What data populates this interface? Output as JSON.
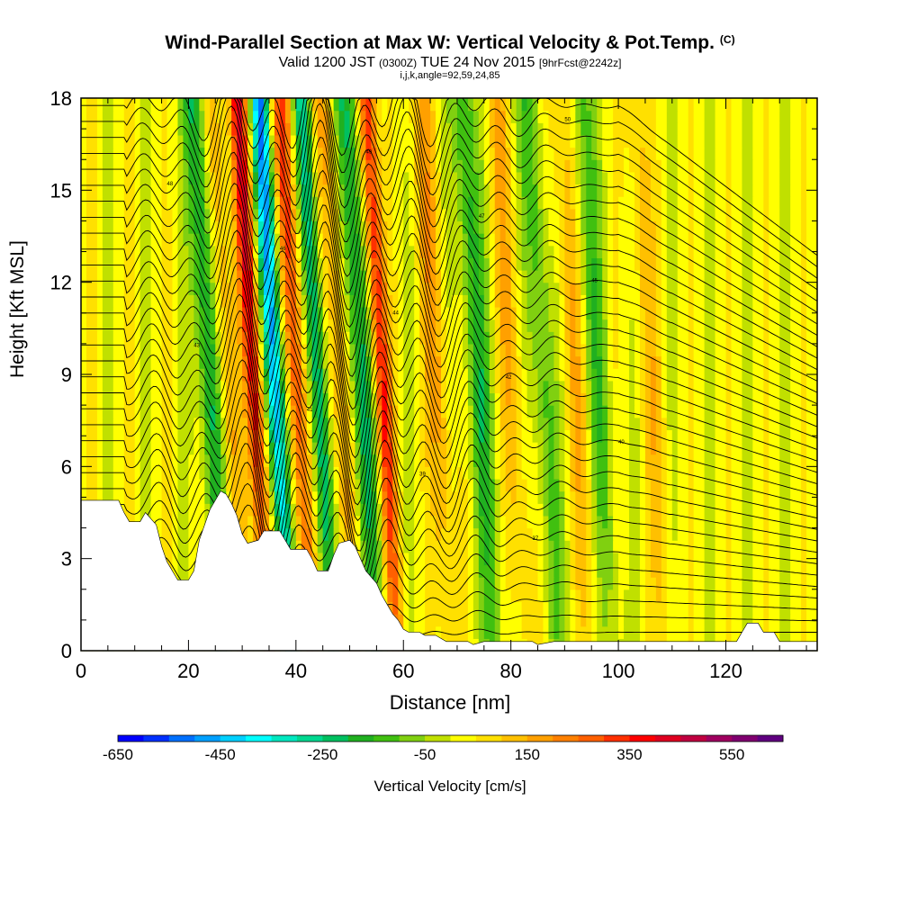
{
  "chart_data": {
    "type": "heatmap",
    "title": "Wind-Parallel Section at Max W: Vertical Velocity & Pot.Temp.",
    "title_mark": "(C)",
    "subtitle_main": "Valid 1200 JST",
    "subtitle_utc": "(0300Z)",
    "subtitle_date": "TUE 24 Nov 2015",
    "subtitle_fcst": "[9hrFcst@2242z]",
    "subtitle_index": "i,j,k,angle=92,59,24,85",
    "xlabel": "Distance [nm]",
    "ylabel": "Height [Kft MSL]",
    "xlim": [
      0,
      137
    ],
    "ylim": [
      0,
      18
    ],
    "x_ticks": [
      0,
      20,
      40,
      60,
      80,
      100,
      120
    ],
    "y_ticks": [
      0,
      3,
      6,
      9,
      12,
      15,
      18
    ],
    "colorbar_label": "Vertical Velocity [cm/s]",
    "colorbar_ticks": [
      -650,
      -450,
      -250,
      -50,
      150,
      350,
      550
    ],
    "colorbar_range": [
      -650,
      650
    ],
    "colorbar_colors": [
      "#0000ff",
      "#0030ff",
      "#0070ff",
      "#00a0ff",
      "#00d0ff",
      "#00ffff",
      "#00e8c0",
      "#00d890",
      "#00c060",
      "#20b020",
      "#40c010",
      "#80d010",
      "#c0e000",
      "#ffff00",
      "#ffe000",
      "#ffc000",
      "#ffa000",
      "#ff8000",
      "#ff6000",
      "#ff3000",
      "#ff0000",
      "#e00020",
      "#c00040",
      "#a00060",
      "#800070",
      "#600080"
    ],
    "updrafts": [
      {
        "x": 32,
        "peak": 380
      },
      {
        "x": 40,
        "peak": 300
      },
      {
        "x": 56,
        "peak": 340
      },
      {
        "x": 27,
        "peak": 150
      },
      {
        "x": 48,
        "peak": 150
      },
      {
        "x": 66,
        "peak": 150
      },
      {
        "x": 80,
        "peak": 120
      },
      {
        "x": 92,
        "peak": 120
      },
      {
        "x": 106,
        "peak": 100
      }
    ],
    "downdrafts": [
      {
        "x": 36,
        "peak": -500
      },
      {
        "x": 44,
        "peak": -300
      },
      {
        "x": 52,
        "peak": -250
      },
      {
        "x": 24,
        "peak": -250
      },
      {
        "x": 74,
        "peak": -200
      },
      {
        "x": 86,
        "peak": -150
      },
      {
        "x": 96,
        "peak": -150
      }
    ],
    "terrain_kft": [
      [
        0,
        4.9
      ],
      [
        7,
        4.9
      ],
      [
        8,
        4.5
      ],
      [
        9,
        4.2
      ],
      [
        11,
        4.2
      ],
      [
        12,
        4.5
      ],
      [
        14,
        4.1
      ],
      [
        15,
        3.4
      ],
      [
        16,
        2.9
      ],
      [
        17,
        2.6
      ],
      [
        18,
        2.3
      ],
      [
        20,
        2.3
      ],
      [
        21,
        2.6
      ],
      [
        22,
        3.6
      ],
      [
        24,
        4.6
      ],
      [
        26,
        5.2
      ],
      [
        27,
        5.1
      ],
      [
        28,
        4.8
      ],
      [
        29,
        4.4
      ],
      [
        30,
        3.8
      ],
      [
        31,
        3.5
      ],
      [
        33,
        3.6
      ],
      [
        34,
        3.9
      ],
      [
        37,
        3.9
      ],
      [
        38,
        3.6
      ],
      [
        39,
        3.3
      ],
      [
        42,
        3.3
      ],
      [
        43,
        3.0
      ],
      [
        44,
        2.6
      ],
      [
        46,
        2.6
      ],
      [
        47,
        3.1
      ],
      [
        48,
        3.5
      ],
      [
        50,
        3.6
      ],
      [
        51,
        3.4
      ],
      [
        52,
        3.0
      ],
      [
        53,
        2.6
      ],
      [
        55,
        2.2
      ],
      [
        56,
        1.8
      ],
      [
        57,
        1.5
      ],
      [
        58,
        1.2
      ],
      [
        59,
        1.0
      ],
      [
        60,
        0.7
      ],
      [
        61,
        0.6
      ],
      [
        63,
        0.6
      ],
      [
        64,
        0.5
      ],
      [
        66,
        0.5
      ],
      [
        67,
        0.4
      ],
      [
        68,
        0.3
      ],
      [
        72,
        0.3
      ],
      [
        73,
        0.2
      ],
      [
        75,
        0.3
      ],
      [
        84,
        0.3
      ],
      [
        85,
        0.2
      ],
      [
        88,
        0.3
      ],
      [
        122,
        0.3
      ],
      [
        123,
        0.6
      ],
      [
        124,
        0.9
      ],
      [
        126,
        0.9
      ],
      [
        127,
        0.6
      ],
      [
        129,
        0.6
      ],
      [
        130,
        0.3
      ],
      [
        137,
        0.3
      ]
    ],
    "isentrope_labels": [
      "35",
      "36",
      "37",
      "38",
      "39",
      "40",
      "41",
      "42",
      "43",
      "44",
      "45",
      "46",
      "47",
      "48",
      "49",
      "50"
    ]
  }
}
